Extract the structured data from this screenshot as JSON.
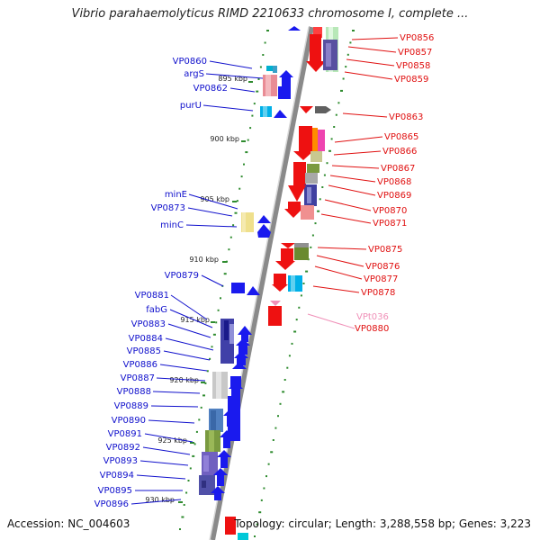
{
  "title": "Vibrio parahaemolyticus RIMD 2210633 chromosome I, complete ...",
  "accession": "Accession: NC_004603",
  "topology": "Topology: circular; Length: 3,288,558 bp; Genes: 3,223",
  "colors": {
    "backbone": "#8c8c8c",
    "tick": "#2e8b2e",
    "forward_label": "#1010cc",
    "reverse_label": "#e01010",
    "rna_label": "#f090b8",
    "forward_gene": "#1a1aee",
    "reverse_gene": "#ee1111"
  },
  "scale_labels": [
    "895 kbp",
    "900 kbp",
    "905 kbp",
    "910 kbp",
    "915 kbp",
    "920 kbp",
    "925 kbp",
    "930 kbp"
  ],
  "left_labels": [
    "VP0860",
    "argS",
    "VP0862",
    "purU",
    "minE",
    "VP0873",
    "minC",
    "VP0879",
    "VP0881",
    "fabG",
    "VP0883",
    "VP0884",
    "VP0885",
    "VP0886",
    "VP0887",
    "VP0888",
    "VP0889",
    "VP0890",
    "VP0891",
    "VP0892",
    "VP0893",
    "VP0894",
    "VP0895",
    "VP0896"
  ],
  "right_labels": [
    "VP0856",
    "VP0857",
    "VP0858",
    "VP0859",
    "VP0863",
    "VP0865",
    "VP0866",
    "VP0867",
    "VP0868",
    "VP0869",
    "VP0870",
    "VP0871",
    "VP0875",
    "VP0876",
    "VP0877",
    "VP0878",
    "VPt036",
    "VP0880"
  ]
}
